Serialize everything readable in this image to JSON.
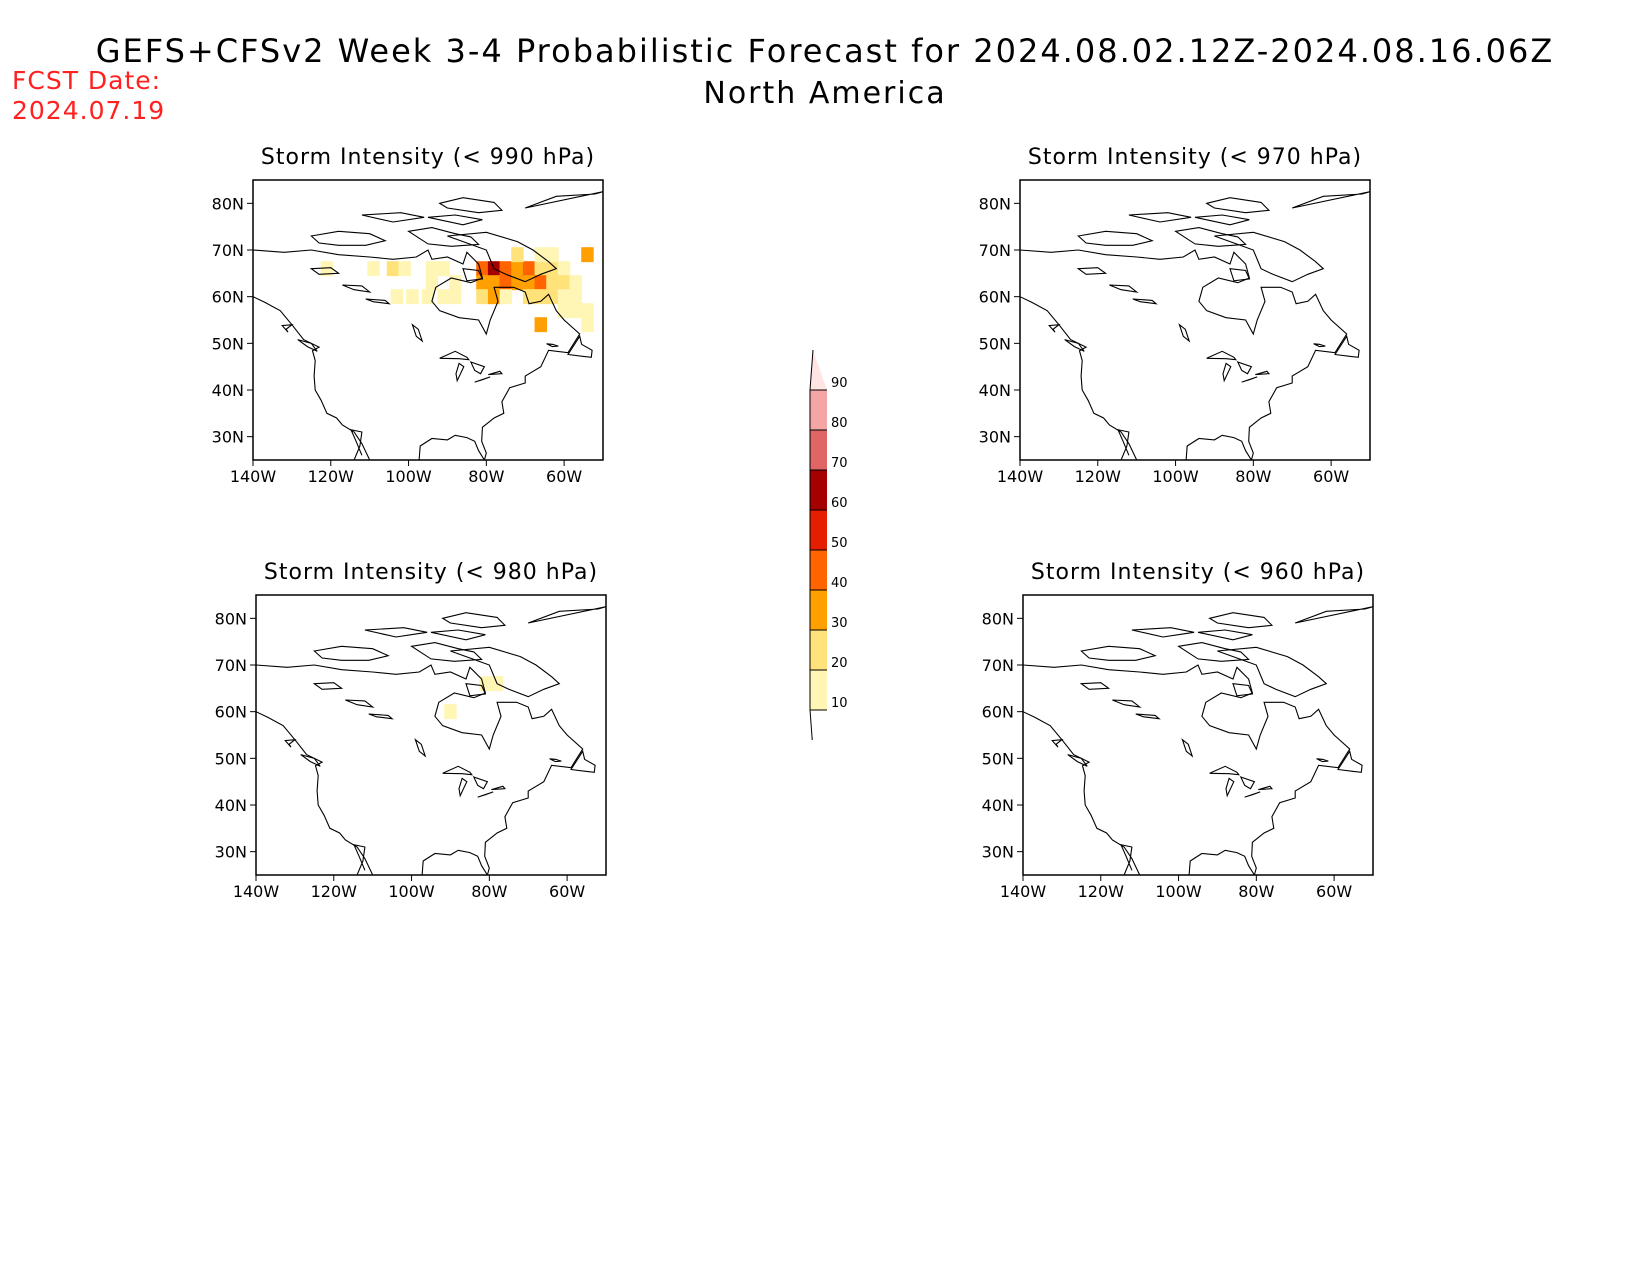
{
  "header": {
    "title": "GEFS+CFSv2 Week 3-4 Probabilistic Forecast for 2024.08.02.12Z-2024.08.16.06Z",
    "subtitle": "North America",
    "fcst_label": "FCST Date:",
    "fcst_date": "2024.07.19"
  },
  "panels": [
    {
      "title": "Storm Intensity (< 990 hPa)",
      "threshold": "990"
    },
    {
      "title": "Storm Intensity (< 970 hPa)",
      "threshold": "970"
    },
    {
      "title": "Storm Intensity (< 980 hPa)",
      "threshold": "980"
    },
    {
      "title": "Storm Intensity (< 960 hPa)",
      "threshold": "960"
    }
  ],
  "axes": {
    "x_ticks": [
      "140W",
      "120W",
      "100W",
      "80W",
      "60W"
    ],
    "y_ticks": [
      "80N",
      "70N",
      "60N",
      "50N",
      "40N",
      "30N"
    ],
    "lon_range": [
      -140,
      -50
    ],
    "lat_range": [
      25,
      85
    ]
  },
  "colorbar": {
    "labels": [
      "10",
      "20",
      "30",
      "40",
      "50",
      "60",
      "70",
      "80",
      "90"
    ],
    "colors": [
      "#fff5b4",
      "#ffe37a",
      "#ffa000",
      "#ff6400",
      "#e61e00",
      "#a50000",
      "#e06666",
      "#f4a6a6",
      "#ffe4e4"
    ]
  },
  "chart_data": [
    {
      "type": "heatmap",
      "title": "Storm Intensity (< 990 hPa)",
      "xlim": [
        -140,
        -50
      ],
      "ylim": [
        25,
        85
      ],
      "cells": [
        {
          "lon": -121,
          "lat": 66,
          "p": 15
        },
        {
          "lon": -109,
          "lat": 66,
          "p": 12
        },
        {
          "lon": -104,
          "lat": 66,
          "p": 22
        },
        {
          "lon": -101,
          "lat": 66,
          "p": 15
        },
        {
          "lon": -94,
          "lat": 66,
          "p": 15
        },
        {
          "lon": -91,
          "lat": 66,
          "p": 15
        },
        {
          "lon": -94,
          "lat": 63,
          "p": 15
        },
        {
          "lon": -103,
          "lat": 60,
          "p": 12
        },
        {
          "lon": -99,
          "lat": 60,
          "p": 15
        },
        {
          "lon": -95,
          "lat": 60,
          "p": 18
        },
        {
          "lon": -91,
          "lat": 60,
          "p": 15
        },
        {
          "lon": -88,
          "lat": 63,
          "p": 15
        },
        {
          "lon": -88,
          "lat": 60,
          "p": 12
        },
        {
          "lon": -81,
          "lat": 66,
          "p": 42
        },
        {
          "lon": -78,
          "lat": 66,
          "p": 65
        },
        {
          "lon": -75,
          "lat": 66,
          "p": 48
        },
        {
          "lon": -72,
          "lat": 66,
          "p": 35
        },
        {
          "lon": -69,
          "lat": 66,
          "p": 42
        },
        {
          "lon": -66,
          "lat": 66,
          "p": 25
        },
        {
          "lon": -63,
          "lat": 66,
          "p": 22
        },
        {
          "lon": -60,
          "lat": 66,
          "p": 15
        },
        {
          "lon": -81,
          "lat": 63,
          "p": 35
        },
        {
          "lon": -78,
          "lat": 63,
          "p": 38
        },
        {
          "lon": -75,
          "lat": 63,
          "p": 45
        },
        {
          "lon": -72,
          "lat": 63,
          "p": 35
        },
        {
          "lon": -69,
          "lat": 63,
          "p": 38
        },
        {
          "lon": -66,
          "lat": 63,
          "p": 45
        },
        {
          "lon": -63,
          "lat": 63,
          "p": 25
        },
        {
          "lon": -60,
          "lat": 63,
          "p": 22
        },
        {
          "lon": -57,
          "lat": 63,
          "p": 15
        },
        {
          "lon": -81,
          "lat": 60,
          "p": 25
        },
        {
          "lon": -78,
          "lat": 60,
          "p": 32
        },
        {
          "lon": -75,
          "lat": 60,
          "p": 15
        },
        {
          "lon": -69,
          "lat": 60,
          "p": 22
        },
        {
          "lon": -66,
          "lat": 60,
          "p": 25
        },
        {
          "lon": -63,
          "lat": 60,
          "p": 22
        },
        {
          "lon": -60,
          "lat": 60,
          "p": 15
        },
        {
          "lon": -57,
          "lat": 60,
          "p": 15
        },
        {
          "lon": -72,
          "lat": 69,
          "p": 22
        },
        {
          "lon": -66,
          "lat": 69,
          "p": 15
        },
        {
          "lon": -63,
          "lat": 69,
          "p": 15
        },
        {
          "lon": -54,
          "lat": 69,
          "p": 35
        },
        {
          "lon": -60,
          "lat": 57,
          "p": 15
        },
        {
          "lon": -57,
          "lat": 57,
          "p": 18
        },
        {
          "lon": -54,
          "lat": 57,
          "p": 15
        },
        {
          "lon": -54,
          "lat": 54,
          "p": 15
        },
        {
          "lon": -66,
          "lat": 54,
          "p": 35
        }
      ]
    },
    {
      "type": "heatmap",
      "title": "Storm Intensity (< 970 hPa)",
      "xlim": [
        -140,
        -50
      ],
      "ylim": [
        25,
        85
      ],
      "cells": []
    },
    {
      "type": "heatmap",
      "title": "Storm Intensity (< 980 hPa)",
      "xlim": [
        -140,
        -50
      ],
      "ylim": [
        25,
        85
      ],
      "cells": [
        {
          "lon": -81,
          "lat": 66,
          "p": 15
        },
        {
          "lon": -78,
          "lat": 66,
          "p": 12
        },
        {
          "lon": -90,
          "lat": 60,
          "p": 15
        }
      ]
    },
    {
      "type": "heatmap",
      "title": "Storm Intensity (< 960 hPa)",
      "xlim": [
        -140,
        -50
      ],
      "ylim": [
        25,
        85
      ],
      "cells": []
    }
  ]
}
